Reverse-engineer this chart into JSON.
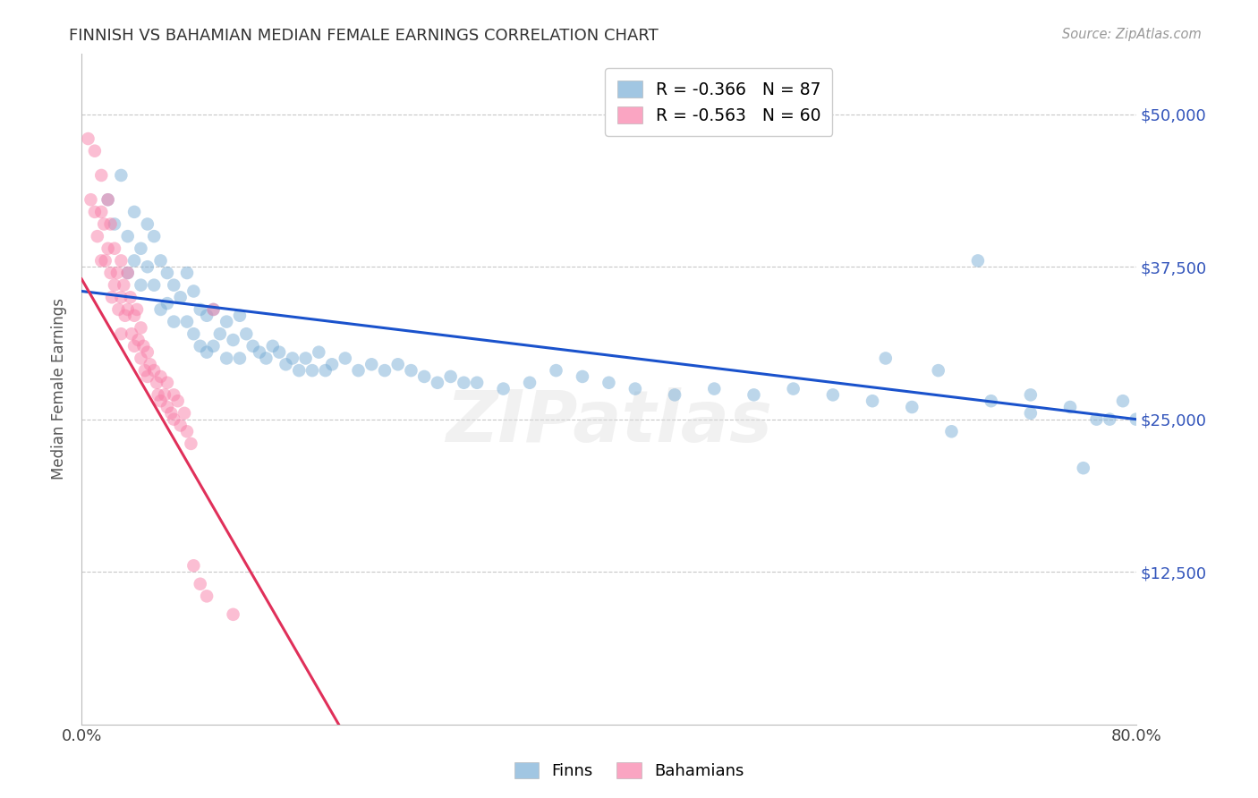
{
  "title": "FINNISH VS BAHAMIAN MEDIAN FEMALE EARNINGS CORRELATION CHART",
  "source": "Source: ZipAtlas.com",
  "ylabel": "Median Female Earnings",
  "ytick_values": [
    12500,
    25000,
    37500,
    50000
  ],
  "ymin": 0,
  "ymax": 55000,
  "xmin": 0.0,
  "xmax": 0.8,
  "legend_entry1": "R = -0.366   N = 87",
  "legend_entry2": "R = -0.563   N = 60",
  "legend_label1": "Finns",
  "legend_label2": "Bahamians",
  "blue_color": "#7aaed6",
  "pink_color": "#f97fa8",
  "trendline_blue": "#1a52cc",
  "trendline_pink": "#e0305a",
  "watermark": "ZIPatlas",
  "background_color": "#ffffff",
  "grid_color": "#c8c8c8",
  "title_color": "#333333",
  "axis_label_color": "#555555",
  "ytick_color": "#3355bb",
  "blue_scatter_x": [
    0.02,
    0.025,
    0.03,
    0.035,
    0.035,
    0.04,
    0.04,
    0.045,
    0.045,
    0.05,
    0.05,
    0.055,
    0.055,
    0.06,
    0.06,
    0.065,
    0.065,
    0.07,
    0.07,
    0.075,
    0.08,
    0.08,
    0.085,
    0.085,
    0.09,
    0.09,
    0.095,
    0.095,
    0.1,
    0.1,
    0.105,
    0.11,
    0.11,
    0.115,
    0.12,
    0.12,
    0.125,
    0.13,
    0.135,
    0.14,
    0.145,
    0.15,
    0.155,
    0.16,
    0.165,
    0.17,
    0.175,
    0.18,
    0.185,
    0.19,
    0.2,
    0.21,
    0.22,
    0.23,
    0.24,
    0.25,
    0.26,
    0.27,
    0.28,
    0.29,
    0.3,
    0.32,
    0.34,
    0.36,
    0.38,
    0.4,
    0.42,
    0.45,
    0.48,
    0.51,
    0.54,
    0.57,
    0.6,
    0.63,
    0.66,
    0.69,
    0.72,
    0.75,
    0.77,
    0.79,
    0.61,
    0.65,
    0.68,
    0.72,
    0.76,
    0.78,
    0.8
  ],
  "blue_scatter_y": [
    43000,
    41000,
    45000,
    40000,
    37000,
    42000,
    38000,
    39000,
    36000,
    41000,
    37500,
    40000,
    36000,
    38000,
    34000,
    37000,
    34500,
    36000,
    33000,
    35000,
    37000,
    33000,
    35500,
    32000,
    34000,
    31000,
    33500,
    30500,
    34000,
    31000,
    32000,
    33000,
    30000,
    31500,
    33500,
    30000,
    32000,
    31000,
    30500,
    30000,
    31000,
    30500,
    29500,
    30000,
    29000,
    30000,
    29000,
    30500,
    29000,
    29500,
    30000,
    29000,
    29500,
    29000,
    29500,
    29000,
    28500,
    28000,
    28500,
    28000,
    28000,
    27500,
    28000,
    29000,
    28500,
    28000,
    27500,
    27000,
    27500,
    27000,
    27500,
    27000,
    26500,
    26000,
    24000,
    26500,
    25500,
    26000,
    25000,
    26500,
    30000,
    29000,
    38000,
    27000,
    21000,
    25000,
    25000
  ],
  "pink_scatter_x": [
    0.005,
    0.007,
    0.01,
    0.01,
    0.012,
    0.015,
    0.015,
    0.015,
    0.017,
    0.018,
    0.02,
    0.02,
    0.022,
    0.022,
    0.023,
    0.025,
    0.025,
    0.027,
    0.028,
    0.03,
    0.03,
    0.03,
    0.032,
    0.033,
    0.035,
    0.035,
    0.037,
    0.038,
    0.04,
    0.04,
    0.042,
    0.043,
    0.045,
    0.045,
    0.047,
    0.048,
    0.05,
    0.05,
    0.052,
    0.055,
    0.057,
    0.058,
    0.06,
    0.06,
    0.063,
    0.065,
    0.065,
    0.068,
    0.07,
    0.07,
    0.073,
    0.075,
    0.078,
    0.08,
    0.083,
    0.085,
    0.09,
    0.095,
    0.1,
    0.115
  ],
  "pink_scatter_y": [
    48000,
    43000,
    47000,
    42000,
    40000,
    45000,
    42000,
    38000,
    41000,
    38000,
    43000,
    39000,
    41000,
    37000,
    35000,
    39000,
    36000,
    37000,
    34000,
    38000,
    35000,
    32000,
    36000,
    33500,
    37000,
    34000,
    35000,
    32000,
    33500,
    31000,
    34000,
    31500,
    32500,
    30000,
    31000,
    29000,
    30500,
    28500,
    29500,
    29000,
    28000,
    27000,
    28500,
    26500,
    27000,
    26000,
    28000,
    25500,
    27000,
    25000,
    26500,
    24500,
    25500,
    24000,
    23000,
    13000,
    11500,
    10500,
    34000,
    9000
  ],
  "blue_trend_x": [
    0.0,
    0.8
  ],
  "blue_trend_y": [
    35500,
    25000
  ],
  "pink_trend_x": [
    0.0,
    0.195
  ],
  "pink_trend_y": [
    36500,
    0
  ]
}
